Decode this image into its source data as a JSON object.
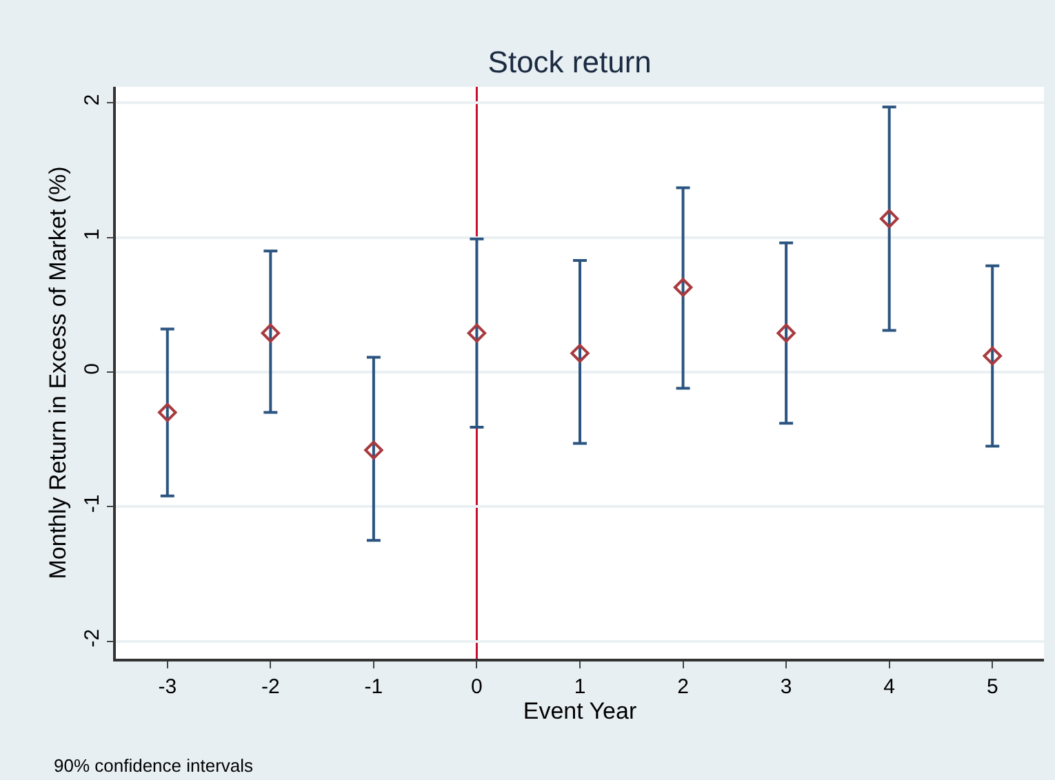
{
  "chart_data": {
    "type": "scatter",
    "title": "Stock return",
    "xlabel": "Event Year",
    "ylabel": "Monthly Return in Excess of Market (%)",
    "x": [
      -3,
      -2,
      -1,
      0,
      1,
      2,
      3,
      4,
      5
    ],
    "series": [
      {
        "color": "#a83a3e",
        "values": [
          -0.3,
          0.29,
          -0.58,
          0.29,
          0.14,
          0.63,
          0.29,
          1.14,
          0.12
        ],
        "errors": [
          [
            -0.92,
            0.32
          ],
          [
            -0.3,
            0.9
          ],
          [
            -1.25,
            0.11
          ],
          [
            -0.41,
            0.99
          ],
          [
            -0.53,
            0.83
          ],
          [
            -0.12,
            1.37
          ],
          [
            -0.38,
            0.96
          ],
          [
            0.31,
            1.97
          ],
          [
            -0.55,
            0.79
          ]
        ]
      }
    ],
    "marker": "diamond",
    "xlim": [
      -3.5,
      5.5
    ],
    "ylim": [
      -2.13,
      2.12
    ],
    "xticks": [
      -3,
      -2,
      -1,
      0,
      1,
      2,
      3,
      4,
      5
    ],
    "yticks": [
      -2,
      -1,
      0,
      1,
      2
    ],
    "grid": "y",
    "ref_lines": [
      {
        "axis": "x",
        "value": 0,
        "color": "#c8102e"
      }
    ],
    "annotations": [
      "90% confidence intervals"
    ]
  }
}
